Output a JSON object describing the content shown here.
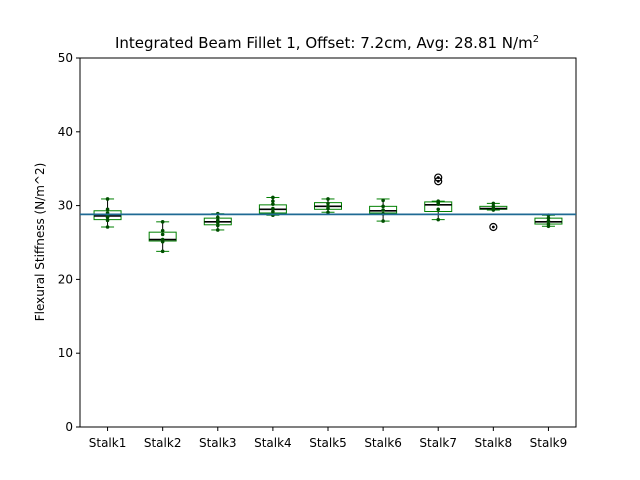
{
  "chart_data": {
    "type": "box",
    "title": "Integrated Beam Fillet 1, Offset: 7.2cm, Avg: 28.81 N/m",
    "title_superscript": "2",
    "xlabel": "",
    "ylabel": "Flexural Stiffness (N/m^2)",
    "ylim": [
      0,
      50
    ],
    "yticks": [
      0,
      10,
      20,
      30,
      40,
      50
    ],
    "grid": false,
    "mean_line": 28.81,
    "categories": [
      "Stalk1",
      "Stalk2",
      "Stalk3",
      "Stalk4",
      "Stalk5",
      "Stalk6",
      "Stalk7",
      "Stalk8",
      "Stalk9"
    ],
    "boxes": [
      {
        "whislo": 27.1,
        "q1": 28.1,
        "med": 28.6,
        "q3": 29.3,
        "whishi": 30.9,
        "fliers": [],
        "points": [
          27.1,
          28.0,
          28.4,
          28.6,
          29.0,
          29.5,
          30.9
        ]
      },
      {
        "whislo": 23.8,
        "q1": 25.2,
        "med": 25.4,
        "q3": 26.4,
        "whishi": 27.8,
        "fliers": [],
        "points": [
          23.8,
          25.1,
          25.4,
          26.1,
          26.6,
          27.8
        ]
      },
      {
        "whislo": 26.7,
        "q1": 27.4,
        "med": 27.8,
        "q3": 28.3,
        "whishi": 28.9,
        "fliers": [],
        "points": [
          26.7,
          27.3,
          27.7,
          28.0,
          28.4,
          28.9
        ]
      },
      {
        "whislo": 28.7,
        "q1": 29.0,
        "med": 29.5,
        "q3": 30.1,
        "whishi": 31.1,
        "fliers": [],
        "points": [
          28.7,
          29.2,
          29.6,
          30.2,
          30.6,
          31.1
        ]
      },
      {
        "whislo": 29.1,
        "q1": 29.5,
        "med": 29.9,
        "q3": 30.4,
        "whishi": 30.9,
        "fliers": [],
        "points": [
          29.1,
          29.6,
          29.9,
          30.3,
          30.9
        ]
      },
      {
        "whislo": 27.9,
        "q1": 29.0,
        "med": 29.3,
        "q3": 29.9,
        "whishi": 30.9,
        "fliers": [],
        "points": [
          27.9,
          28.9,
          29.4,
          29.9,
          30.7
        ]
      },
      {
        "whislo": 28.1,
        "q1": 29.2,
        "med": 30.1,
        "q3": 30.5,
        "whishi": 30.6,
        "fliers": [
          33.3,
          33.8
        ],
        "points": [
          28.1,
          29.5,
          30.2,
          30.4,
          30.6
        ]
      },
      {
        "whislo": 29.4,
        "q1": 29.5,
        "med": 29.6,
        "q3": 29.9,
        "whishi": 30.3,
        "fliers": [
          27.1
        ],
        "points": [
          29.4,
          29.6,
          29.9,
          30.3
        ]
      },
      {
        "whislo": 27.2,
        "q1": 27.5,
        "med": 27.8,
        "q3": 28.3,
        "whishi": 28.7,
        "fliers": [],
        "points": [
          27.2,
          27.5,
          27.9,
          28.3,
          28.7
        ]
      }
    ],
    "colors": {
      "box": "#008000",
      "median": "#000000",
      "whisker": "#000000",
      "points": "#004d00",
      "mean_line": "#1f6a94",
      "axes": "#000000"
    }
  }
}
